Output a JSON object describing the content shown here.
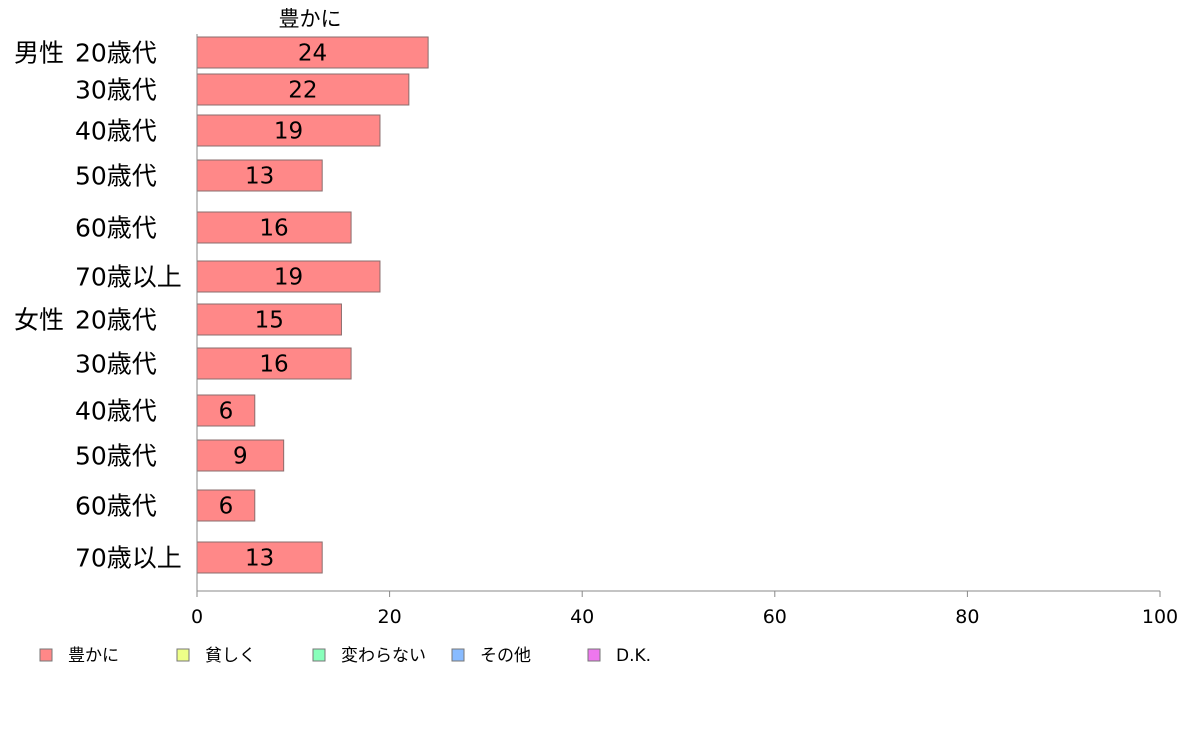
{
  "chart_data": {
    "type": "bar",
    "orientation": "horizontal",
    "series_header": "豊かに",
    "groups": [
      {
        "label": "男性",
        "start_index": 0
      },
      {
        "label": "女性",
        "start_index": 6
      }
    ],
    "categories": [
      "20歳代",
      "30歳代",
      "40歳代",
      "50歳代",
      "60歳代",
      "70歳以上",
      "20歳代",
      "30歳代",
      "40歳代",
      "50歳代",
      "60歳代",
      "70歳以上"
    ],
    "series": [
      {
        "name": "豊かに",
        "color": "#ff8888",
        "values": [
          24,
          22,
          19,
          13,
          16,
          19,
          15,
          16,
          6,
          9,
          6,
          13
        ]
      }
    ],
    "xlim": [
      0,
      100
    ],
    "xticks": [
      0,
      20,
      40,
      60,
      80,
      100
    ],
    "grid": false,
    "legend_position": "bottom",
    "legend": [
      {
        "label": "豊かに",
        "color": "#ff8888"
      },
      {
        "label": "貧しく",
        "color": "#eeff88"
      },
      {
        "label": "変わらない",
        "color": "#88ffbb"
      },
      {
        "label": "その他",
        "color": "#88bbff"
      },
      {
        "label": "D.K.",
        "color": "#ee77ee"
      }
    ]
  }
}
